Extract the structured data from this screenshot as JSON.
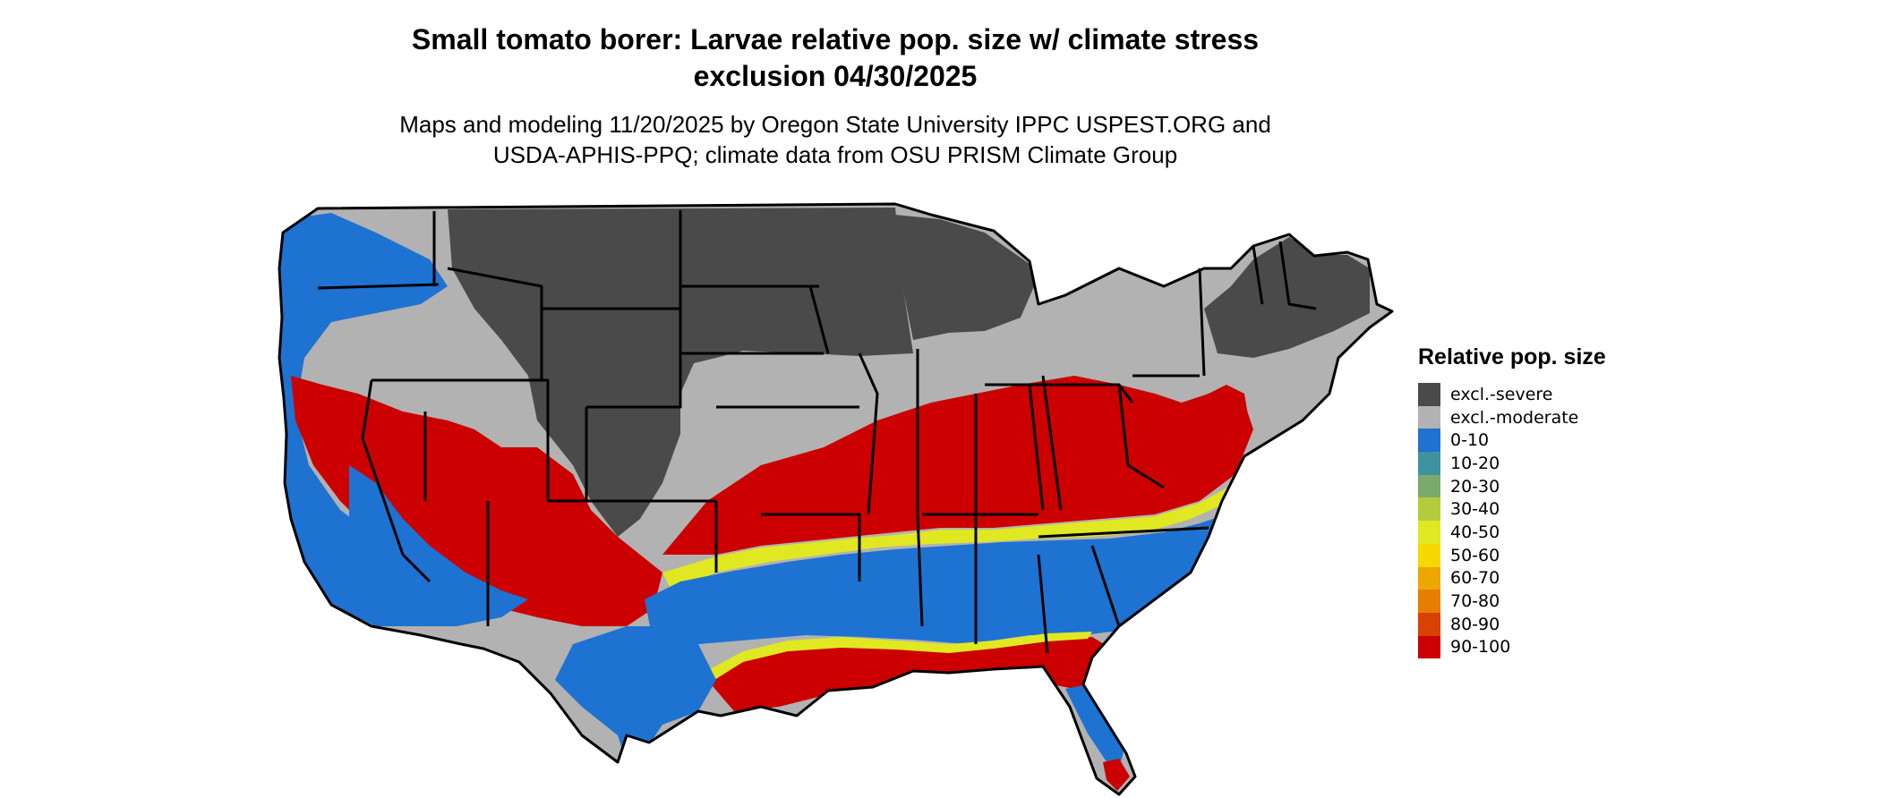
{
  "title": {
    "line1": "Small tomato borer: Larvae relative pop. size w/ climate stress",
    "line2": "exclusion 04/30/2025"
  },
  "subtitle": {
    "line1": "Maps and modeling 11/20/2025 by Oregon State University IPPC USPEST.ORG and",
    "line2": "USDA-APHIS-PPQ; climate data from OSU PRISM Climate Group"
  },
  "legend": {
    "title": "Relative pop. size",
    "items": [
      {
        "label": "excl.-severe",
        "color": "#4a4a4a"
      },
      {
        "label": "excl.-moderate",
        "color": "#b2b2b2"
      },
      {
        "label": "0-10",
        "color": "#1e72d2"
      },
      {
        "label": "10-20",
        "color": "#3f93a1"
      },
      {
        "label": "20-30",
        "color": "#7aaa6c"
      },
      {
        "label": "30-40",
        "color": "#b2cc3c"
      },
      {
        "label": "40-50",
        "color": "#e0e822"
      },
      {
        "label": "50-60",
        "color": "#f6d800"
      },
      {
        "label": "60-70",
        "color": "#efa600"
      },
      {
        "label": "70-80",
        "color": "#e87d00"
      },
      {
        "label": "80-90",
        "color": "#d94100"
      },
      {
        "label": "90-100",
        "color": "#cd0000"
      }
    ]
  },
  "map": {
    "region": "contiguous-united-states",
    "boundaries": "state-outlines",
    "outline_color": "#000000"
  }
}
